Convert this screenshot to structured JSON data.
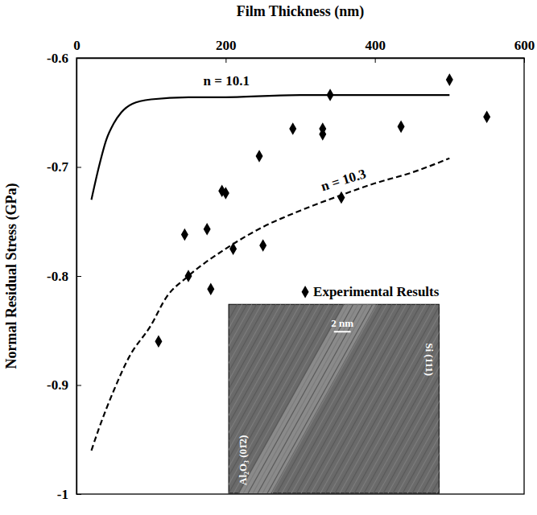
{
  "chart_data": {
    "type": "scatter",
    "x_label": "Film Thickness (nm)",
    "y_label": "Normal Residual Stress (GPa)",
    "xlim": [
      0,
      600
    ],
    "xticks": [
      0,
      200,
      400,
      600
    ],
    "ylim": [
      -1,
      -0.6
    ],
    "yticks": [
      -1,
      -0.9,
      -0.8,
      -0.7,
      -0.6
    ],
    "legend": "right",
    "grid": false,
    "series": [
      {
        "name": "n = 10.1",
        "type": "line",
        "line_style": "solid",
        "color": "#000000",
        "x": [
          20,
          30,
          40,
          50,
          60,
          75,
          100,
          150,
          200,
          300,
          400,
          500
        ],
        "values": [
          -0.73,
          -0.7,
          -0.675,
          -0.66,
          -0.65,
          -0.642,
          -0.638,
          -0.636,
          -0.636,
          -0.634,
          -0.634,
          -0.634
        ]
      },
      {
        "name": "n = 10.3",
        "type": "line",
        "line_style": "dashed",
        "color": "#000000",
        "x": [
          20,
          30,
          50,
          70,
          100,
          120,
          150,
          200,
          250,
          300,
          350,
          400,
          450,
          500
        ],
        "values": [
          -0.96,
          -0.94,
          -0.905,
          -0.875,
          -0.845,
          -0.82,
          -0.8,
          -0.775,
          -0.755,
          -0.74,
          -0.727,
          -0.715,
          -0.705,
          -0.692
        ]
      },
      {
        "name": "Experimental Results",
        "type": "scatter",
        "marker": "diamond",
        "color": "#000000",
        "x": [
          110,
          145,
          150,
          175,
          180,
          195,
          200,
          210,
          245,
          250,
          290,
          330,
          330,
          340,
          355,
          435,
          500,
          550
        ],
        "values": [
          -0.86,
          -0.762,
          -0.8,
          -0.757,
          -0.812,
          -0.722,
          -0.724,
          -0.775,
          -0.69,
          -0.772,
          -0.665,
          -0.665,
          -0.67,
          -0.634,
          -0.728,
          -0.663,
          -0.62,
          -0.654
        ]
      }
    ],
    "annotations": [
      "2 nm",
      "Si (111)",
      "Al₂O₃ (01̄2)"
    ]
  }
}
